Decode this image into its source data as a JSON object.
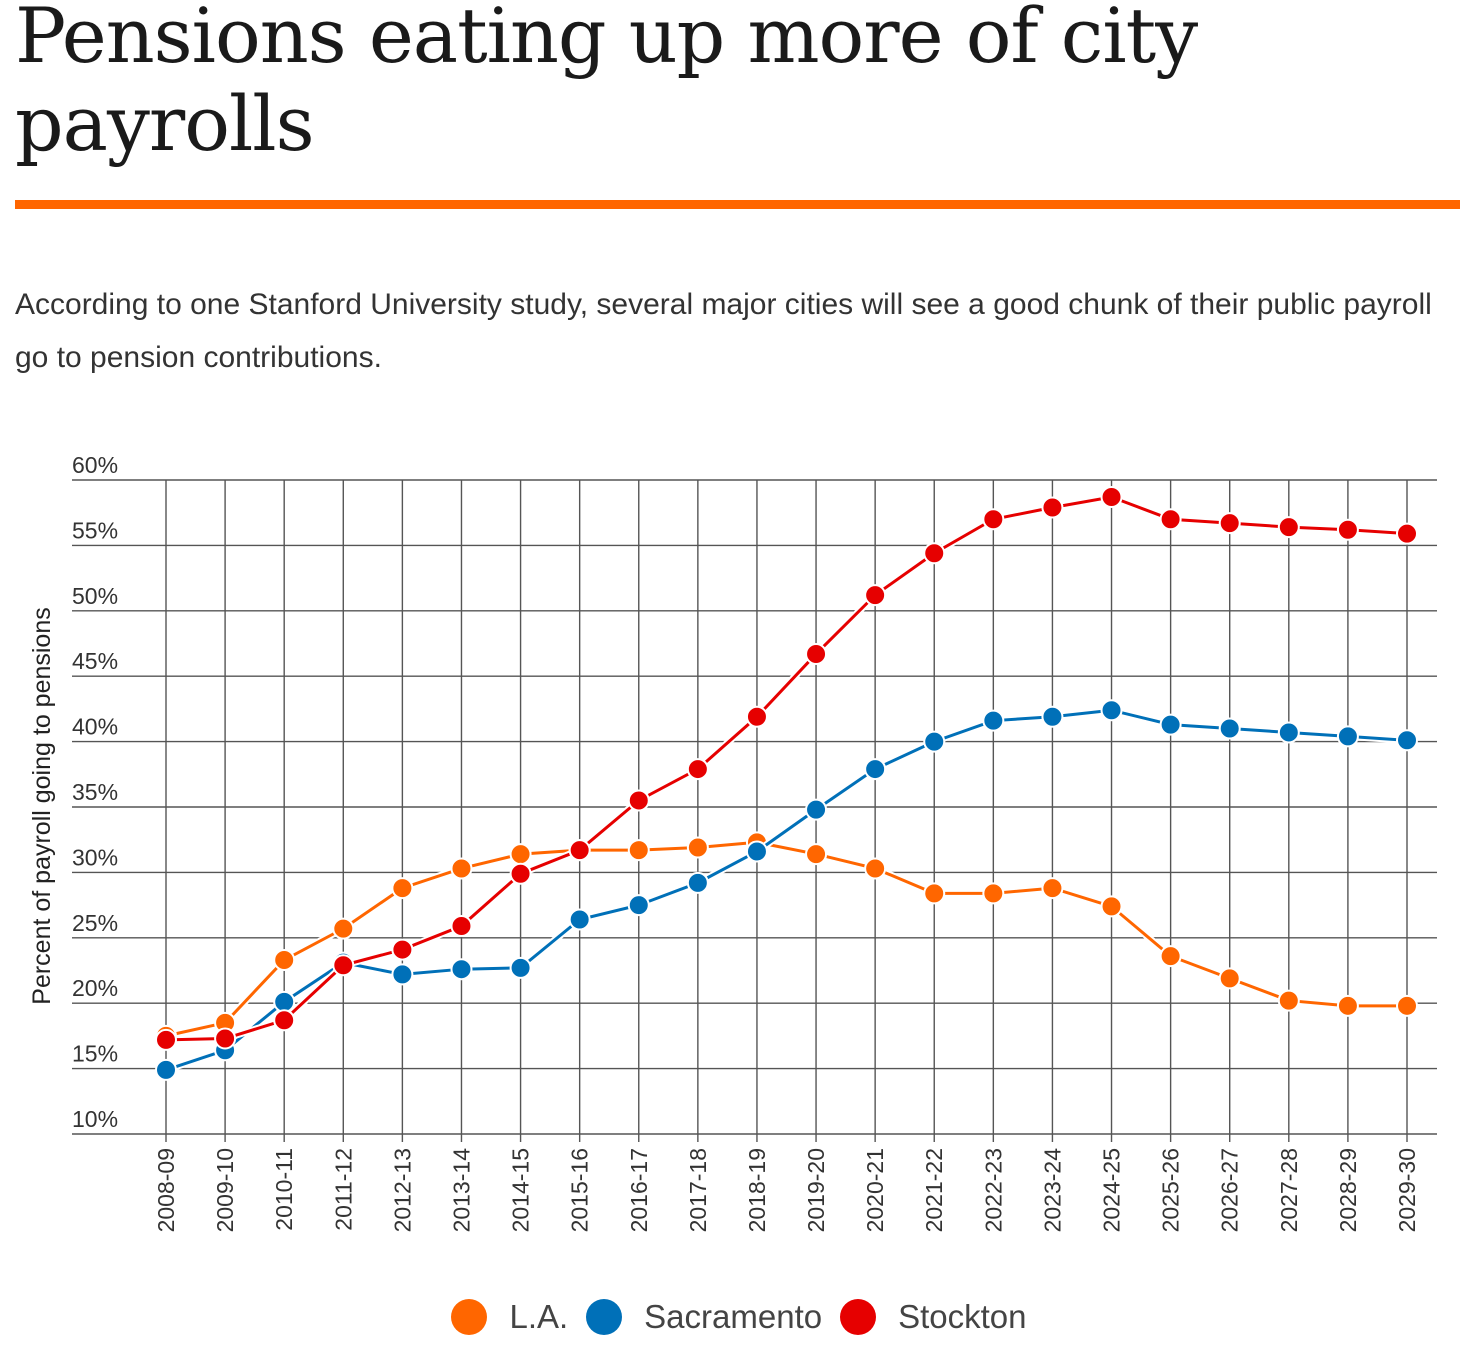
{
  "header": {
    "title": "Pensions eating up more of city payrolls",
    "subtitle": "According to one Stanford University study, several major cities will see a good chunk of their public payroll go to pension contributions."
  },
  "colors": {
    "accent": "#ff6600",
    "grid": "#555555"
  },
  "chart_data": {
    "type": "line",
    "title": "Pensions eating up more of city payrolls",
    "xlabel": "",
    "ylabel": "Percent of payroll going to pensions",
    "ylim": [
      10,
      60
    ],
    "yticks": [
      10,
      15,
      20,
      25,
      30,
      35,
      40,
      45,
      50,
      55,
      60
    ],
    "ytick_labels": [
      "10%",
      "15%",
      "20%",
      "25%",
      "30%",
      "35%",
      "40%",
      "45%",
      "50%",
      "55%",
      "60%"
    ],
    "grid": true,
    "legend_position": "bottom",
    "categories": [
      "2008-09",
      "2009-10",
      "2010-11",
      "2011-12",
      "2012-13",
      "2013-14",
      "2014-15",
      "2015-16",
      "2016-17",
      "2017-18",
      "2018-19",
      "2019-20",
      "2020-21",
      "2021-22",
      "2022-23",
      "2023-24",
      "2024-25",
      "2025-26",
      "2026-27",
      "2027-28",
      "2028-29",
      "2029-30"
    ],
    "series": [
      {
        "name": "L.A.",
        "color": "#ff6600",
        "values": [
          17.5,
          18.5,
          23.3,
          25.7,
          28.8,
          30.3,
          31.4,
          31.7,
          31.7,
          31.9,
          32.3,
          31.4,
          30.3,
          28.4,
          28.4,
          28.8,
          27.4,
          23.6,
          21.9,
          20.2,
          19.8,
          19.8
        ]
      },
      {
        "name": "Sacramento",
        "color": "#0070b8",
        "values": [
          14.9,
          16.4,
          20.1,
          23.1,
          22.2,
          22.6,
          22.7,
          26.4,
          27.5,
          29.2,
          31.6,
          34.8,
          37.9,
          40.0,
          41.6,
          41.9,
          42.4,
          41.3,
          41.0,
          40.7,
          40.4,
          40.1
        ]
      },
      {
        "name": "Stockton",
        "color": "#e60000",
        "values": [
          17.2,
          17.3,
          18.7,
          22.9,
          24.1,
          25.9,
          29.9,
          31.7,
          35.5,
          37.9,
          41.9,
          46.7,
          51.2,
          54.4,
          57.0,
          57.9,
          58.7,
          57.0,
          56.7,
          56.4,
          56.2,
          55.9
        ]
      }
    ]
  }
}
